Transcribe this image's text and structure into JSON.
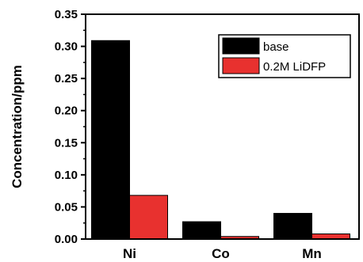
{
  "chart_data": {
    "type": "bar",
    "categories": [
      "Ni",
      "Co",
      "Mn"
    ],
    "series": [
      {
        "name": "base",
        "values": [
          0.309,
          0.027,
          0.04
        ],
        "color": "#000000"
      },
      {
        "name": "0.2M LiDFP",
        "values": [
          0.068,
          0.004,
          0.008
        ],
        "color": "#e8312f"
      }
    ],
    "xlabel": "",
    "ylabel": "Concentration/ppm",
    "ylim": [
      0,
      0.35
    ],
    "yticks": [
      "0.00",
      "0.05",
      "0.10",
      "0.15",
      "0.20",
      "0.25",
      "0.30",
      "0.35"
    ],
    "legend_position": "top-right",
    "grid": false
  }
}
